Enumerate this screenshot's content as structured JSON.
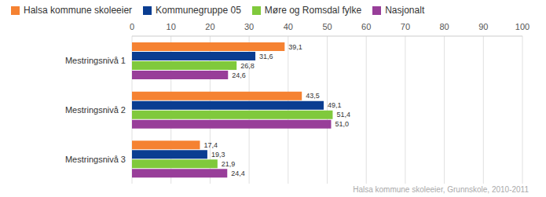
{
  "chart_data": {
    "type": "bar",
    "orientation": "horizontal",
    "categories": [
      "Mestringsnivå 1",
      "Mestringsnivå 2",
      "Mestringsnivå 3"
    ],
    "series": [
      {
        "name": "Halsa kommune skoleeier",
        "color": "#f58232",
        "values": [
          39.1,
          43.5,
          17.4
        ],
        "value_labels": [
          "39,1",
          "43,5",
          "17,4"
        ]
      },
      {
        "name": "Kommunegruppe 05",
        "color": "#0a3d91",
        "values": [
          31.6,
          49.1,
          19.3
        ],
        "value_labels": [
          "31,6",
          "49,1",
          "19,3"
        ]
      },
      {
        "name": "Møre og Romsdal fylke",
        "color": "#80c93c",
        "values": [
          26.8,
          51.4,
          21.9
        ],
        "value_labels": [
          "26,8",
          "51,4",
          "21,9"
        ]
      },
      {
        "name": "Nasjonalt",
        "color": "#983e99",
        "values": [
          24.6,
          51.0,
          24.4
        ],
        "value_labels": [
          "24,6",
          "51,0",
          "24,4"
        ]
      }
    ],
    "xlim": [
      0,
      100
    ],
    "xticks": [
      0,
      10,
      20,
      30,
      40,
      50,
      60,
      70,
      80,
      90,
      100
    ],
    "grid": true,
    "data_labels": true,
    "legend": "top",
    "caption": "Halsa kommune skoleeier, Grunnskole, 2010-2011"
  }
}
